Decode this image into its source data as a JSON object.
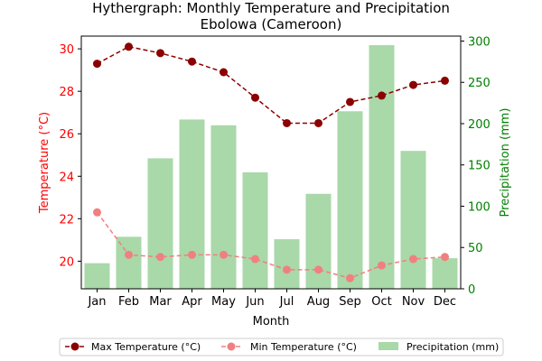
{
  "chart_data": {
    "type": "bar+line",
    "title": "Hythergraph: Monthly Temperature and Precipitation",
    "subtitle": "Ebolowa (Cameroon)",
    "xlabel": "Month",
    "ylabel_left": "Temperature (°C)",
    "ylabel_right": "Precipitation (mm)",
    "categories": [
      "Jan",
      "Feb",
      "Mar",
      "Apr",
      "May",
      "Jun",
      "Jul",
      "Aug",
      "Sep",
      "Oct",
      "Nov",
      "Dec"
    ],
    "y_left": {
      "lim": [
        18.7,
        30.6
      ],
      "ticks": [
        20,
        22,
        24,
        26,
        28,
        30
      ],
      "color": "#ff0000"
    },
    "y_right": {
      "lim": [
        0,
        306
      ],
      "ticks": [
        0,
        50,
        100,
        150,
        200,
        250,
        300
      ],
      "color": "#008000"
    },
    "series": [
      {
        "name": "Max Temperature (°C)",
        "kind": "line",
        "axis": "left",
        "color": "#8b0000",
        "dashed": true,
        "values": [
          29.3,
          30.1,
          29.8,
          29.4,
          28.9,
          27.7,
          26.5,
          26.5,
          27.5,
          27.8,
          28.3,
          28.5
        ]
      },
      {
        "name": "Min Temperature (°C)",
        "kind": "line",
        "axis": "left",
        "color": "#f08080",
        "dashed": true,
        "values": [
          22.3,
          20.3,
          20.2,
          20.3,
          20.3,
          20.1,
          19.6,
          19.6,
          19.2,
          19.8,
          20.1,
          20.2
        ]
      },
      {
        "name": "Precipitation (mm)",
        "kind": "bar",
        "axis": "right",
        "color": "#a9d8a9",
        "values": [
          31,
          63,
          158,
          205,
          198,
          141,
          60,
          115,
          215,
          295,
          167,
          37
        ]
      }
    ],
    "legend_position": "bottom-center",
    "grid": false
  }
}
